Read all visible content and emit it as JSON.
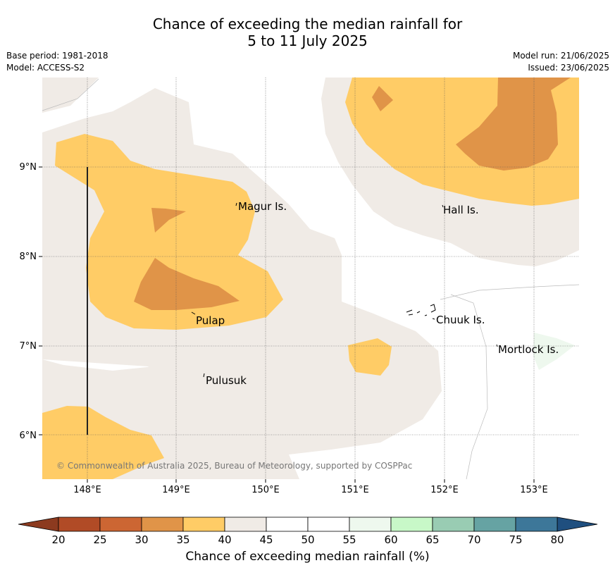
{
  "title": {
    "line1": "Chance of exceeding the median rainfall for",
    "line2": "5 to 11 July 2025"
  },
  "meta_left": {
    "base_period": "Base period: 1981-2018",
    "model": "Model: ACCESS-S2"
  },
  "meta_right": {
    "model_run": "Model run: 21/06/2025",
    "issued": "Issued: 23/06/2025"
  },
  "map": {
    "lat_labels": [
      "9°N",
      "8°N",
      "7°N",
      "6°N"
    ],
    "lon_labels": [
      "148°E",
      "149°E",
      "150°E",
      "151°E",
      "152°E",
      "153°E"
    ],
    "places": [
      "Magur Is.",
      "Hall Is.",
      "Pulap",
      "Chuuk Is.",
      "Mortlock Is.",
      "Pulusuk"
    ],
    "copyright": "© Commonwealth of Australia 2025, Bureau of Meteorology, supported by COSPPac"
  },
  "colorbar": {
    "ticks": [
      "20",
      "25",
      "30",
      "35",
      "40",
      "45",
      "50",
      "55",
      "60",
      "65",
      "70",
      "75",
      "80"
    ],
    "colors": [
      "#b14b26",
      "#cc6633",
      "#e09448",
      "#ffcc66",
      "#f0ebe6",
      "#ffffff",
      "#ffffff",
      "#eef8ee",
      "#c8f8c8",
      "#99ccb3",
      "#66a3a3",
      "#3d7799"
    ],
    "under_color": "#8c3a1f",
    "over_color": "#1f4f7f",
    "label": "Chance of exceeding median rainfall (%)"
  }
}
